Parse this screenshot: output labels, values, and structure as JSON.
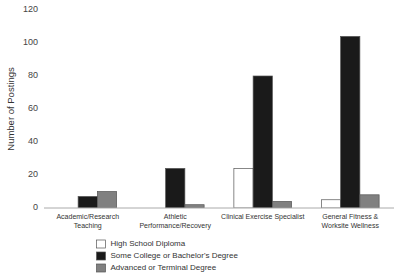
{
  "chart_data": {
    "type": "bar",
    "ylabel": "Number of Postings",
    "categories": [
      "Academic/Research\nTeaching",
      "Athletic\nPerformance/Recovery",
      "Clinical Exercise Specialist",
      "General Fitness &\nWorksite Wellness"
    ],
    "series": [
      {
        "name": "High School Diploma",
        "color": "#ffffff",
        "values": [
          0,
          0,
          24,
          5
        ]
      },
      {
        "name": "Some College or Bachelor's Degree",
        "color": "#1a1a1a",
        "values": [
          7,
          24,
          80,
          104
        ]
      },
      {
        "name": "Advanced or Terminal Degree",
        "color": "#808080",
        "values": [
          10,
          2,
          4,
          8
        ]
      }
    ],
    "ylim": [
      0,
      120
    ],
    "yticks": [
      0,
      20,
      40,
      60,
      80,
      100,
      120
    ],
    "grid": false,
    "legend": "bottom"
  }
}
